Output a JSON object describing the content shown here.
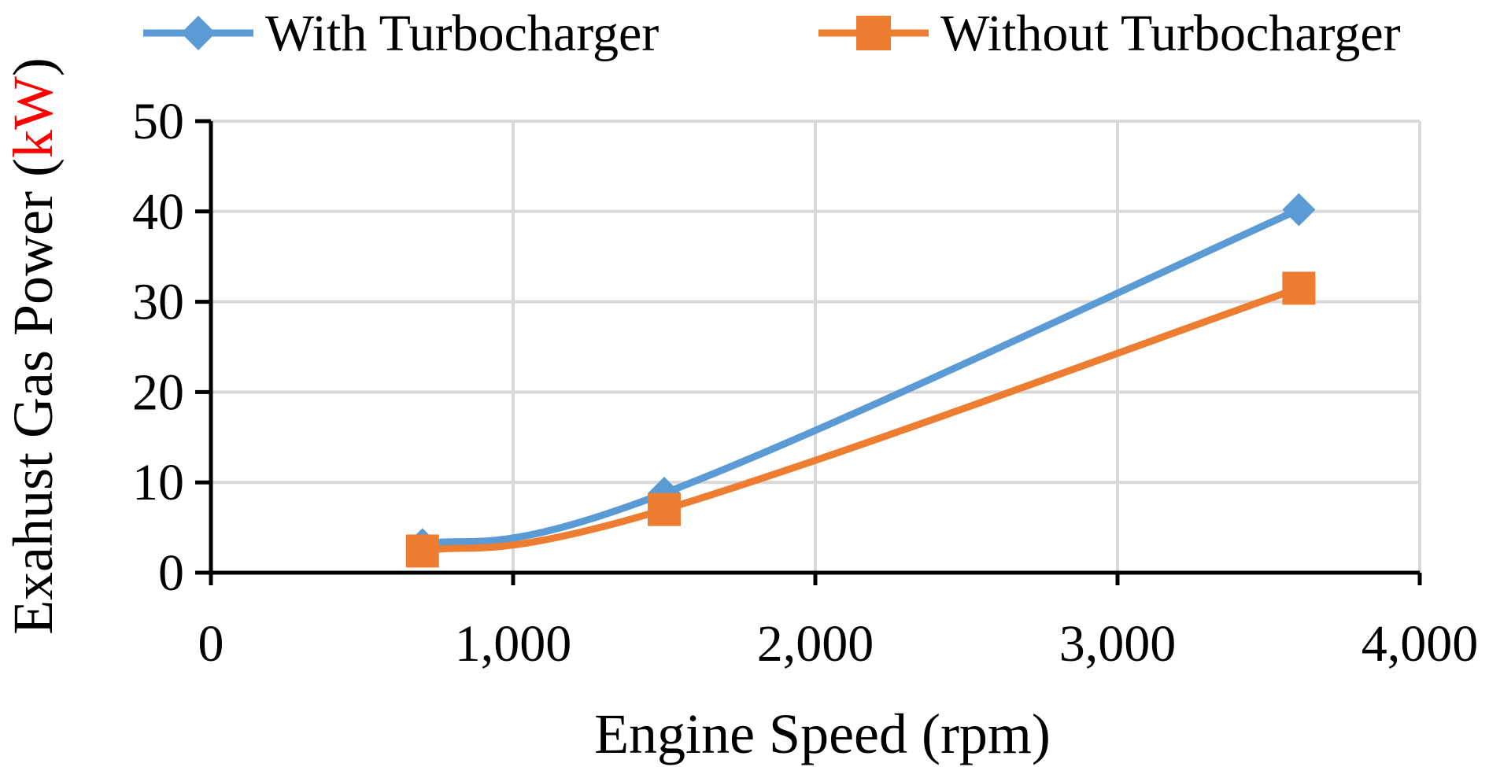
{
  "chart_data": {
    "type": "line",
    "smooth": true,
    "xlabel": "Engine Speed (rpm)",
    "ylabel_parts": [
      {
        "text": "Exahust Gas Power (",
        "color": "#000000"
      },
      {
        "text": "kW",
        "color": "#ff0000"
      },
      {
        "text": ")",
        "color": "#000000"
      }
    ],
    "xlim": [
      0,
      4000
    ],
    "ylim": [
      0,
      50
    ],
    "xticks": [
      0,
      1000,
      2000,
      3000,
      4000
    ],
    "xtick_labels": [
      "0",
      "1,000",
      "2,000",
      "3,000",
      "4,000"
    ],
    "yticks": [
      0,
      10,
      20,
      30,
      40,
      50
    ],
    "ytick_labels": [
      "0",
      "10",
      "20",
      "30",
      "40",
      "50"
    ],
    "grid": true,
    "legend_position": "top",
    "series": [
      {
        "name": "With Turbocharger",
        "color": "#5b9bd5",
        "marker": "diamond",
        "x": [
          700,
          1500,
          3600
        ],
        "y": [
          3.1,
          8.8,
          40.2
        ]
      },
      {
        "name": "Without Turbocharger",
        "color": "#ed7d31",
        "marker": "square",
        "x": [
          700,
          1500,
          3600
        ],
        "y": [
          2.4,
          7.0,
          31.5
        ]
      }
    ]
  }
}
